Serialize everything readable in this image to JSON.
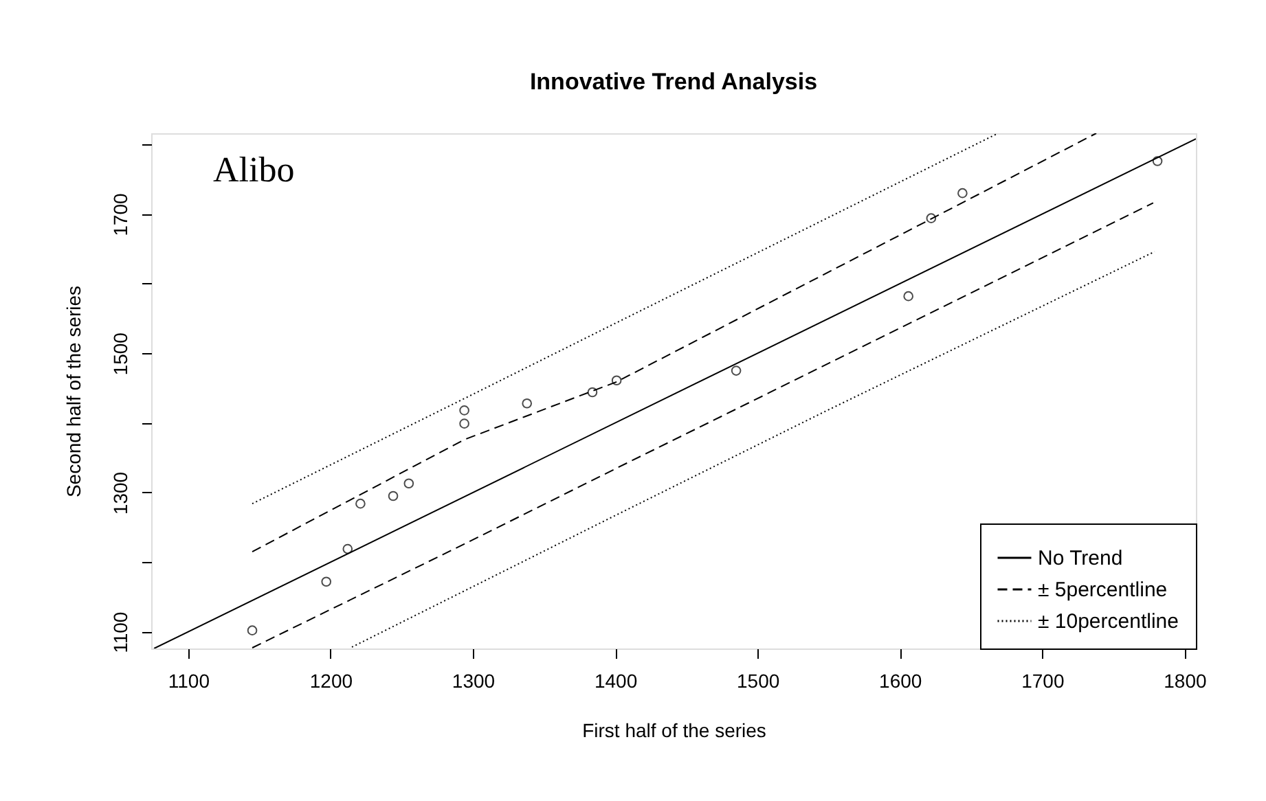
{
  "chart_data": {
    "type": "scatter",
    "title": "Innovative Trend Analysis",
    "xlabel": "First half of the series",
    "ylabel": "Second half of the series",
    "annotations": [
      "Alibo"
    ],
    "xlim": [
      1074,
      1808
    ],
    "ylim": [
      1076,
      1816
    ],
    "xticks": [
      1100,
      1200,
      1300,
      1400,
      1500,
      1600,
      1700,
      1800
    ],
    "yticks": [
      1100,
      {
        "value": 1200,
        "label": null
      },
      1300,
      {
        "value": 1400,
        "label": null
      },
      1500,
      {
        "value": 1600,
        "label": null
      },
      1700,
      {
        "value": 1800,
        "label": null
      }
    ],
    "grid": false,
    "legend": "bottom right",
    "series": [
      {
        "color": "#000000",
        "marker": "circle",
        "x": [
          1145,
          1197,
          1212,
          1221,
          1244,
          1255,
          1294,
          1294,
          1338,
          1384,
          1401,
          1485,
          1606,
          1622,
          1644,
          1781
        ],
        "values": [
          1102,
          1172,
          1219,
          1284,
          1295,
          1313,
          1399,
          1418,
          1428,
          1444,
          1461,
          1475,
          1582,
          1694,
          1730,
          1776
        ]
      },
      {
        "type": "line",
        "name": "No Trend",
        "color": "#000000",
        "line_style": "solid",
        "x": [
          1076,
          1808
        ],
        "values": [
          1076,
          1808
        ]
      },
      {
        "type": "line",
        "name": "± 5percentline",
        "color": "#000000",
        "line_style": "dashed",
        "x": [
          1145,
          1294,
          1401,
          1622,
          1738
        ],
        "values": [
          1215,
          1376,
          1459,
          1693,
          1816
        ]
      },
      {
        "type": "line",
        "color": "#000000",
        "line_style": "dashed",
        "x": [
          1145,
          1294,
          1401,
          1778
        ],
        "values": [
          1077,
          1226,
          1335,
          1716
        ]
      },
      {
        "type": "line",
        "name": "± 10percentline",
        "color": "#000000",
        "line_style": "dotted",
        "x": [
          1145,
          1294,
          1401,
          1669
        ],
        "values": [
          1284,
          1435,
          1544,
          1816
        ]
      },
      {
        "type": "line",
        "color": "#000000",
        "line_style": "dotted",
        "x": [
          1215,
          1401,
          1547,
          1779
        ],
        "values": [
          1078,
          1268,
          1416,
          1646
        ]
      }
    ]
  }
}
